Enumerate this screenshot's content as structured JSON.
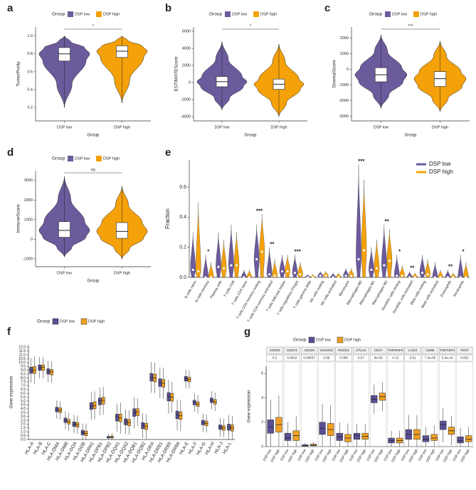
{
  "chart_data": [
    {
      "type": "violin",
      "panel": "a",
      "legend_title": "Group",
      "ylabel": "TumorPurity",
      "xlabel": "Group",
      "signif": "*",
      "categories": [
        "DSP low",
        "DSP high"
      ],
      "series": [
        {
          "name": "DSP low",
          "color": "#6b5a9c",
          "stats": {
            "min": 0.2,
            "q1": 0.72,
            "median": 0.8,
            "q3": 0.87,
            "max": 1.0
          }
        },
        {
          "name": "DSP high",
          "color": "#f5a10a",
          "stats": {
            "min": 0.25,
            "q1": 0.76,
            "median": 0.83,
            "q3": 0.89,
            "max": 1.0
          }
        }
      ],
      "ylim": [
        0.05,
        1.1
      ],
      "yticks": [
        0.2,
        0.4,
        0.6,
        0.8,
        {
          "value": 1,
          "label": "1.0"
        }
      ]
    },
    {
      "type": "violin",
      "panel": "b",
      "legend_title": "Group",
      "ylabel": "ESTIMATEScore",
      "xlabel": "Group",
      "signif": "*",
      "categories": [
        "DSP low",
        "DSP high"
      ],
      "series": [
        {
          "name": "DSP low",
          "color": "#6b5a9c",
          "stats": {
            "min": -3200,
            "q1": -500,
            "median": 100,
            "q3": 700,
            "max": 4800
          }
        },
        {
          "name": "DSP high",
          "color": "#f5a10a",
          "stats": {
            "min": -4000,
            "q1": -800,
            "median": -200,
            "q3": 400,
            "max": 4500
          }
        }
      ],
      "ylim": [
        -4500,
        6500
      ],
      "yticks": [
        -4000,
        -2000,
        0,
        2000,
        4000,
        6000
      ]
    },
    {
      "type": "violin",
      "panel": "c",
      "legend_title": "Group",
      "ylabel": "StromalScore",
      "xlabel": "Group",
      "signif": "***",
      "categories": [
        "DSP low",
        "DSP high"
      ],
      "series": [
        {
          "name": "DSP low",
          "color": "#6b5a9c",
          "stats": {
            "min": -2500,
            "q1": -800,
            "median": -350,
            "q3": 100,
            "max": 2200
          }
        },
        {
          "name": "DSP high",
          "color": "#f5a10a",
          "stats": {
            "min": -2700,
            "q1": -1100,
            "median": -600,
            "q3": -150,
            "max": 1800
          }
        }
      ],
      "ylim": [
        -3300,
        2700
      ],
      "yticks": [
        -3000,
        -2000,
        -1000,
        0,
        1000,
        2000
      ]
    },
    {
      "type": "violin",
      "panel": "d",
      "legend_title": "Group",
      "ylabel": "ImmuneScore",
      "xlabel": "Group",
      "signif": "ns",
      "categories": [
        "DSP low",
        "DSP high"
      ],
      "series": [
        {
          "name": "DSP low",
          "color": "#6b5a9c",
          "stats": {
            "min": -900,
            "q1": 100,
            "median": 450,
            "q3": 900,
            "max": 3200
          }
        },
        {
          "name": "DSP high",
          "color": "#f5a10a",
          "stats": {
            "min": -1000,
            "q1": 50,
            "median": 400,
            "q3": 850,
            "max": 2700
          }
        }
      ],
      "ylim": [
        -1400,
        3500
      ],
      "yticks": [
        -1000,
        0,
        1000,
        2000,
        3000
      ]
    },
    {
      "type": "groupviolin",
      "panel": "e",
      "ylabel": "Fraction",
      "categories": [
        "B cells naive",
        "B cells memory",
        "Plasma cells",
        "T cells CD8",
        "T cells CD4 naive",
        "T cells CD4 memory resting",
        "T cells CD4 memory activated",
        "T cells follicular helper",
        "T cells regulatory (Tregs)",
        "T cells gamma delta",
        "NK cells resting",
        "NK cells activated",
        "Monocytes",
        "Macrophages M0",
        "Macrophages M1",
        "Macrophages M2",
        "Dendritic cells resting",
        "Dendritic cells activated",
        "Mast cells resting",
        "Mast cells activated",
        "Eosinophils",
        "Neutrophils"
      ],
      "signif": [
        null,
        "*",
        null,
        null,
        null,
        "***",
        "**",
        null,
        "***",
        null,
        null,
        null,
        null,
        "***",
        null,
        "**",
        "*",
        "**",
        null,
        null,
        "**",
        "*"
      ],
      "series": [
        {
          "name": "DSP low",
          "color": "#6b5a9c",
          "values": [
            0.05,
            0.0,
            0.07,
            0.08,
            0.0,
            0.12,
            0.02,
            0.04,
            0.03,
            0.0,
            0.01,
            0.0,
            0.01,
            0.12,
            0.05,
            0.08,
            0.01,
            0.0,
            0.03,
            0.0,
            0.0,
            0.0
          ],
          "max": [
            0.3,
            0.15,
            0.3,
            0.35,
            0.05,
            0.35,
            0.2,
            0.15,
            0.15,
            0.02,
            0.04,
            0.03,
            0.06,
            0.75,
            0.2,
            0.35,
            0.15,
            0.04,
            0.15,
            0.1,
            0.05,
            0.15
          ]
        },
        {
          "name": "DSP high",
          "color": "#f5a10a",
          "values": [
            0.04,
            0.0,
            0.06,
            0.08,
            0.0,
            0.17,
            0.01,
            0.04,
            0.02,
            0.0,
            0.01,
            0.0,
            0.01,
            0.18,
            0.06,
            0.11,
            0.01,
            0.0,
            0.02,
            0.0,
            0.0,
            0.0
          ],
          "max": [
            0.5,
            0.1,
            0.25,
            0.3,
            0.05,
            0.42,
            0.12,
            0.15,
            0.1,
            0.02,
            0.04,
            0.03,
            0.06,
            0.65,
            0.25,
            0.32,
            0.08,
            0.03,
            0.12,
            0.05,
            0.03,
            0.1
          ]
        }
      ],
      "ylim": [
        0,
        0.78
      ],
      "yticks": [
        {
          "value": 0,
          "label": "0.0"
        },
        0.2,
        0.4,
        0.6
      ]
    },
    {
      "type": "box",
      "panel": "f",
      "legend_title": "Group",
      "ylabel": "Gene expression",
      "categories": [
        "HLA-A",
        "HLA-B",
        "HLA-C",
        "HLA-DMA",
        "HLA-DMB",
        "HLA-DOA",
        "HLA-DOB",
        "HLA-DPA1",
        "HLA-DPB1",
        "HLA-DPB2",
        "HLA-DQA1",
        "HLA-DQA2",
        "HLA-DQB1",
        "HLA-DQB2",
        "HLA-DRA",
        "HLA-DRB1",
        "HLA-DRB5",
        "HLA-DRB6",
        "HLA-E",
        "HLA-F",
        "HLA-G",
        "HLA-H",
        "HLA-J",
        "HLA-L"
      ],
      "series": [
        {
          "name": "DSP low",
          "color": "#5b4f96",
          "q1": [
            8.6,
            9.0,
            8.5,
            3.6,
            2.2,
            1.7,
            0.6,
            3.9,
            4.5,
            0.2,
            2.4,
            1.9,
            3.0,
            1.4,
            7.6,
            6.9,
            5.0,
            2.7,
            7.6,
            4.5,
            1.9,
            4.8,
            1.3,
            1.2
          ],
          "values": [
            9.0,
            9.3,
            8.9,
            3.9,
            2.5,
            2.0,
            0.9,
            4.3,
            5.0,
            0.3,
            2.9,
            2.3,
            3.5,
            1.8,
            8.1,
            7.4,
            5.6,
            3.2,
            7.9,
            4.8,
            2.2,
            5.1,
            1.6,
            1.6
          ],
          "q3": [
            9.4,
            9.7,
            9.2,
            4.2,
            2.8,
            2.3,
            1.2,
            4.8,
            5.4,
            0.4,
            3.3,
            2.7,
            4.0,
            2.2,
            8.6,
            7.9,
            6.1,
            3.7,
            8.2,
            5.1,
            2.5,
            5.4,
            1.9,
            2.0
          ]
        },
        {
          "name": "DSP high",
          "color": "#f0a022",
          "q1": [
            8.6,
            9.0,
            8.4,
            3.5,
            2.0,
            1.6,
            0.5,
            4.0,
            4.6,
            0.2,
            2.3,
            1.8,
            3.1,
            1.3,
            7.5,
            6.8,
            5.0,
            2.6,
            7.5,
            4.3,
            1.8,
            4.6,
            1.2,
            1.1
          ],
          "values": [
            9.0,
            9.4,
            8.8,
            3.8,
            2.3,
            1.9,
            0.8,
            4.4,
            5.1,
            0.3,
            2.8,
            2.2,
            3.6,
            1.7,
            8.0,
            7.3,
            5.5,
            3.1,
            7.8,
            4.6,
            2.1,
            4.9,
            1.5,
            1.5
          ],
          "q3": [
            9.5,
            9.7,
            9.1,
            4.1,
            2.6,
            2.2,
            1.1,
            4.9,
            5.5,
            0.45,
            3.3,
            2.6,
            4.0,
            2.1,
            8.5,
            7.8,
            6.0,
            3.6,
            8.1,
            4.9,
            2.4,
            5.2,
            1.8,
            1.9
          ]
        }
      ],
      "ylim": [
        0,
        12.3
      ],
      "yticks": [
        {
          "value": 0,
          "label": "0.0"
        },
        0.5,
        {
          "value": 1,
          "label": "1.0"
        },
        1.5,
        {
          "value": 2,
          "label": "2.0"
        },
        2.5,
        {
          "value": 3,
          "label": "3.0"
        },
        3.5,
        {
          "value": 4,
          "label": "4.0"
        },
        4.5,
        {
          "value": 5,
          "label": "5.0"
        },
        5.5,
        {
          "value": 6,
          "label": "6.0"
        },
        6.5,
        {
          "value": 7,
          "label": "7.0"
        },
        7.5,
        {
          "value": 8,
          "label": "8.0"
        },
        8.5,
        {
          "value": 9,
          "label": "9.0"
        },
        9.5,
        {
          "value": 10,
          "label": "10.0"
        },
        10.5,
        {
          "value": 11,
          "label": "11.0"
        },
        11.5,
        {
          "value": 12,
          "label": "12.0"
        }
      ]
    },
    {
      "type": "facetbox",
      "panel": "g",
      "legend_title": "Group",
      "ylabel": "Gene expression",
      "categories": [
        "CD200",
        "CD274",
        "CD226",
        "HAVCR2",
        "PDCD1",
        "CTLA4",
        "CD47",
        "TNFRSF9",
        "LAG3",
        "CD96",
        "TNFRSF4",
        "TIGIT"
      ],
      "pvalues": [
        "0.2",
        "0.0016",
        "0.00037",
        "0.99",
        "0.068",
        "0.57",
        "9e-05",
        "0.12",
        "0.51",
        "7.3e-06",
        "5.3e-16",
        "0.651"
      ],
      "series": [
        {
          "name": "DSP low",
          "color": "#5b4f96",
          "q1": [
            1.1,
            0.5,
            0.05,
            1.0,
            0.5,
            0.6,
            3.6,
            0.3,
            0.6,
            0.4,
            1.4,
            0.3
          ],
          "values": [
            1.6,
            0.7,
            0.1,
            1.5,
            0.8,
            0.9,
            3.9,
            0.5,
            1.0,
            0.6,
            1.8,
            0.5
          ],
          "q3": [
            2.2,
            1.1,
            0.15,
            2.0,
            1.1,
            1.1,
            4.2,
            0.7,
            1.4,
            0.9,
            2.1,
            0.8
          ]
        },
        {
          "name": "DSP high",
          "color": "#f0a022",
          "q1": [
            1.2,
            0.5,
            0.07,
            0.9,
            0.4,
            0.6,
            3.8,
            0.3,
            0.6,
            0.5,
            1.0,
            0.4
          ],
          "values": [
            1.8,
            0.9,
            0.12,
            1.4,
            0.7,
            0.85,
            4.1,
            0.5,
            1.0,
            0.7,
            1.3,
            0.6
          ],
          "q3": [
            2.4,
            1.3,
            0.2,
            1.9,
            1.0,
            1.1,
            4.4,
            0.7,
            1.4,
            1.0,
            1.6,
            0.9
          ]
        }
      ],
      "ylim": [
        0,
        6.6
      ],
      "yticks": [
        0,
        2,
        4,
        6
      ]
    }
  ]
}
